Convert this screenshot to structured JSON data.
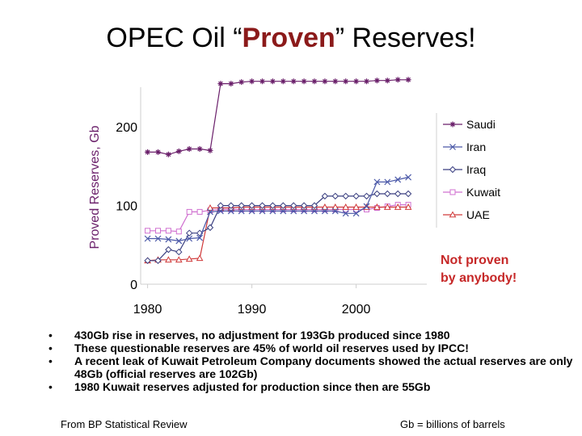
{
  "slide": {
    "title_pre": "OPEC Oil “",
    "title_highlight": "Proven",
    "title_post": "” Reserves!",
    "note_line1": "Not proven",
    "note_line2": "by anybody!",
    "bullets": [
      "430Gb rise in reserves, no adjustment for 193Gb produced since 1980",
      "These questionable reserves are 45% of world oil reserves used by IPCC!",
      "A recent leak of Kuwait Petroleum Company documents showed the actual reserves are only 48Gb (official reserves are 102Gb)",
      "1980 Kuwait reserves adjusted for production since then are 55Gb"
    ],
    "source": "From BP Statistical Review",
    "units_note": "Gb = billions of barrels"
  },
  "colors": {
    "title_highlight": "#8b1a1a",
    "note": "#c62828",
    "Saudi": "#6a1f6a",
    "Iran": "#4a58a8",
    "Iraq": "#3a3f80",
    "Kuwait": "#d070d0",
    "UAE": "#d03a3a",
    "ink_pink": "#d6176e"
  },
  "chart_data": {
    "type": "line",
    "title": "",
    "xlabel": "",
    "ylabel": "Proved Reserves, Gb",
    "xlim": [
      1978,
      2006
    ],
    "ylim": [
      0,
      260
    ],
    "xticks": [
      1980,
      1990,
      2000
    ],
    "yticks": [
      0,
      100,
      200
    ],
    "legend_position": "right",
    "x": [
      1980,
      1981,
      1982,
      1983,
      1984,
      1985,
      1986,
      1987,
      1988,
      1989,
      1990,
      1991,
      1992,
      1993,
      1994,
      1995,
      1996,
      1997,
      1998,
      1999,
      2000,
      2001,
      2002,
      2003,
      2004,
      2005
    ],
    "series": [
      {
        "name": "Saudi",
        "marker": "asterisk",
        "values": [
          168,
          168,
          165,
          169,
          172,
          172,
          170,
          255,
          255,
          257,
          258,
          258,
          258,
          258,
          258,
          258,
          258,
          258,
          258,
          258,
          258,
          258,
          259,
          259,
          260,
          260
        ]
      },
      {
        "name": "Iran",
        "marker": "x",
        "values": [
          58,
          58,
          57,
          55,
          58,
          59,
          92,
          93,
          93,
          93,
          93,
          93,
          93,
          93,
          93,
          93,
          93,
          93,
          93,
          90,
          90,
          99,
          130,
          130,
          133,
          136
        ]
      },
      {
        "name": "Iraq",
        "marker": "diamond",
        "values": [
          30,
          30,
          44,
          41,
          65,
          65,
          72,
          100,
          100,
          100,
          100,
          100,
          100,
          100,
          100,
          100,
          100,
          112,
          112,
          112,
          112,
          112,
          115,
          115,
          115,
          115
        ]
      },
      {
        "name": "Kuwait",
        "marker": "square",
        "values": [
          68,
          68,
          68,
          67,
          92,
          92,
          94,
          95,
          95,
          95,
          95,
          95,
          95,
          95,
          95,
          95,
          95,
          95,
          95,
          95,
          95,
          95,
          97,
          99,
          101,
          101
        ]
      },
      {
        "name": "UAE",
        "marker": "triangle",
        "values": [
          30,
          31,
          31,
          31,
          32,
          33,
          97,
          97,
          97,
          98,
          98,
          98,
          98,
          98,
          98,
          98,
          98,
          98,
          98,
          98,
          98,
          98,
          98,
          98,
          98,
          98
        ]
      }
    ]
  }
}
